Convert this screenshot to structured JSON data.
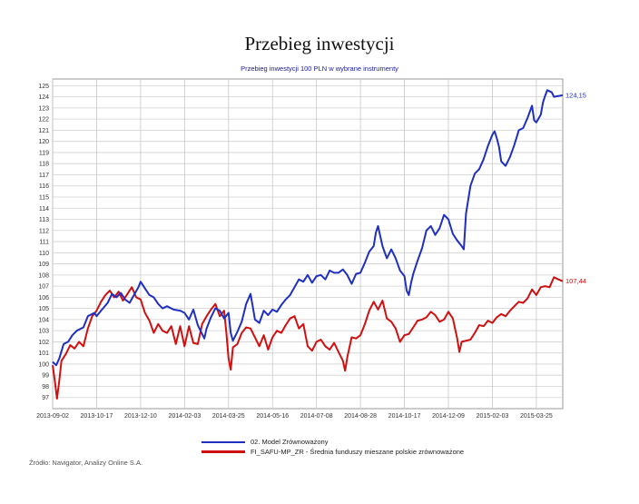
{
  "page": {
    "title": "Przebieg inwestycji",
    "source": "Źródło: Navigator, Analizy Online S.A."
  },
  "chart_data": {
    "type": "line",
    "title": "Przebieg inwestycji 100 PLN w wybrane instrumenty",
    "xlabel": "",
    "ylabel": "",
    "ylim": [
      96,
      125.6
    ],
    "yticks": [
      97,
      98,
      99,
      100,
      101,
      102,
      103,
      104,
      105,
      106,
      107,
      108,
      109,
      110,
      111,
      112,
      113,
      114,
      115,
      116,
      117,
      118,
      119,
      120,
      121,
      122,
      123,
      124,
      125
    ],
    "xticks": [
      "2013-09-02",
      "2013-10-17",
      "2013-12-10",
      "2014-02-03",
      "2014-03-25",
      "2014-05-16",
      "2014-07-08",
      "2014-08-28",
      "2014-10-17",
      "2014-12-09",
      "2015-02-03",
      "2015-03-25"
    ],
    "xlim": [
      0,
      11.6
    ],
    "grid": true,
    "legend_position": "bottom",
    "series": [
      {
        "name": "02. Model Zrównoważony",
        "color": "#1f2fc0",
        "end_label": "124,15",
        "points": [
          [
            0,
            100.2
          ],
          [
            0.08,
            99.9
          ],
          [
            0.15,
            100.5
          ],
          [
            0.25,
            101.8
          ],
          [
            0.35,
            102.0
          ],
          [
            0.45,
            102.6
          ],
          [
            0.55,
            103.0
          ],
          [
            0.7,
            103.3
          ],
          [
            0.8,
            104.3
          ],
          [
            0.95,
            104.6
          ],
          [
            1.0,
            104.3
          ],
          [
            1.1,
            104.8
          ],
          [
            1.25,
            105.5
          ],
          [
            1.35,
            106.3
          ],
          [
            1.45,
            106.0
          ],
          [
            1.55,
            106.4
          ],
          [
            1.65,
            105.8
          ],
          [
            1.75,
            105.5
          ],
          [
            1.85,
            106.2
          ],
          [
            1.95,
            106.9
          ],
          [
            2.0,
            107.4
          ],
          [
            2.1,
            106.8
          ],
          [
            2.2,
            106.2
          ],
          [
            2.3,
            106.0
          ],
          [
            2.4,
            105.4
          ],
          [
            2.5,
            105.0
          ],
          [
            2.6,
            105.2
          ],
          [
            2.75,
            104.9
          ],
          [
            2.9,
            104.8
          ],
          [
            3.0,
            104.6
          ],
          [
            3.1,
            104.0
          ],
          [
            3.2,
            104.9
          ],
          [
            3.3,
            103.5
          ],
          [
            3.45,
            102.3
          ],
          [
            3.5,
            103.2
          ],
          [
            3.6,
            104.2
          ],
          [
            3.7,
            105.0
          ],
          [
            3.8,
            104.8
          ],
          [
            3.9,
            104.1
          ],
          [
            4.0,
            104.6
          ],
          [
            4.05,
            102.8
          ],
          [
            4.1,
            102.1
          ],
          [
            4.2,
            102.9
          ],
          [
            4.3,
            103.8
          ],
          [
            4.4,
            105.4
          ],
          [
            4.5,
            106.3
          ],
          [
            4.55,
            105.2
          ],
          [
            4.6,
            104.0
          ],
          [
            4.7,
            103.7
          ],
          [
            4.8,
            104.8
          ],
          [
            4.9,
            104.4
          ],
          [
            5.0,
            104.9
          ],
          [
            5.1,
            104.7
          ],
          [
            5.2,
            105.3
          ],
          [
            5.3,
            105.8
          ],
          [
            5.4,
            106.2
          ],
          [
            5.5,
            106.9
          ],
          [
            5.6,
            107.6
          ],
          [
            5.7,
            107.4
          ],
          [
            5.8,
            108.0
          ],
          [
            5.9,
            107.3
          ],
          [
            6.0,
            107.9
          ],
          [
            6.1,
            108.0
          ],
          [
            6.2,
            107.6
          ],
          [
            6.3,
            108.4
          ],
          [
            6.4,
            108.2
          ],
          [
            6.5,
            108.2
          ],
          [
            6.6,
            108.5
          ],
          [
            6.7,
            108.0
          ],
          [
            6.8,
            107.2
          ],
          [
            6.9,
            108.1
          ],
          [
            7.0,
            108.2
          ],
          [
            7.1,
            109.1
          ],
          [
            7.2,
            110.1
          ],
          [
            7.3,
            110.6
          ],
          [
            7.35,
            111.8
          ],
          [
            7.4,
            112.4
          ],
          [
            7.45,
            111.5
          ],
          [
            7.5,
            110.6
          ],
          [
            7.6,
            109.5
          ],
          [
            7.7,
            110.3
          ],
          [
            7.8,
            109.5
          ],
          [
            7.9,
            108.4
          ],
          [
            8.0,
            107.9
          ],
          [
            8.05,
            106.6
          ],
          [
            8.1,
            106.2
          ],
          [
            8.15,
            107.3
          ],
          [
            8.2,
            108.1
          ],
          [
            8.3,
            109.3
          ],
          [
            8.4,
            110.4
          ],
          [
            8.5,
            112.0
          ],
          [
            8.6,
            112.4
          ],
          [
            8.7,
            111.6
          ],
          [
            8.8,
            112.2
          ],
          [
            8.9,
            113.4
          ],
          [
            9.0,
            113.0
          ],
          [
            9.1,
            111.7
          ],
          [
            9.2,
            111.1
          ],
          [
            9.3,
            110.6
          ],
          [
            9.35,
            110.3
          ],
          [
            9.4,
            113.5
          ],
          [
            9.5,
            116.0
          ],
          [
            9.6,
            117.1
          ],
          [
            9.7,
            117.5
          ],
          [
            9.8,
            118.4
          ],
          [
            9.9,
            119.6
          ],
          [
            10.0,
            120.6
          ],
          [
            10.05,
            120.9
          ],
          [
            10.1,
            120.3
          ],
          [
            10.15,
            119.5
          ],
          [
            10.2,
            118.2
          ],
          [
            10.3,
            117.8
          ],
          [
            10.4,
            118.6
          ],
          [
            10.5,
            119.7
          ],
          [
            10.6,
            121.0
          ],
          [
            10.7,
            121.2
          ],
          [
            10.8,
            122.1
          ],
          [
            10.9,
            123.2
          ],
          [
            10.95,
            121.9
          ],
          [
            11.0,
            121.7
          ],
          [
            11.1,
            122.4
          ],
          [
            11.15,
            123.5
          ],
          [
            11.2,
            124.1
          ],
          [
            11.25,
            124.6
          ],
          [
            11.35,
            124.4
          ],
          [
            11.4,
            124.0
          ],
          [
            11.6,
            124.15
          ]
        ]
      },
      {
        "name": "FI_SAFU-MP_ZR - Średnia funduszy mieszane polskie zrównoważone",
        "color": "#d01010",
        "end_label": "107,44",
        "points": [
          [
            0,
            99.9
          ],
          [
            0.05,
            98.5
          ],
          [
            0.1,
            96.9
          ],
          [
            0.15,
            98.5
          ],
          [
            0.2,
            100.3
          ],
          [
            0.3,
            100.9
          ],
          [
            0.4,
            101.7
          ],
          [
            0.5,
            101.4
          ],
          [
            0.6,
            102.0
          ],
          [
            0.7,
            101.6
          ],
          [
            0.8,
            103.2
          ],
          [
            0.9,
            104.3
          ],
          [
            1.0,
            104.8
          ],
          [
            1.1,
            105.6
          ],
          [
            1.2,
            106.2
          ],
          [
            1.3,
            106.6
          ],
          [
            1.4,
            106.0
          ],
          [
            1.5,
            106.5
          ],
          [
            1.6,
            105.7
          ],
          [
            1.7,
            106.3
          ],
          [
            1.8,
            106.9
          ],
          [
            1.9,
            106.0
          ],
          [
            2.0,
            105.8
          ],
          [
            2.1,
            104.6
          ],
          [
            2.2,
            103.9
          ],
          [
            2.3,
            102.8
          ],
          [
            2.4,
            103.6
          ],
          [
            2.5,
            103.0
          ],
          [
            2.6,
            102.8
          ],
          [
            2.7,
            103.4
          ],
          [
            2.8,
            101.8
          ],
          [
            2.9,
            103.4
          ],
          [
            3.0,
            101.6
          ],
          [
            3.1,
            103.4
          ],
          [
            3.2,
            101.9
          ],
          [
            3.3,
            101.8
          ],
          [
            3.4,
            103.6
          ],
          [
            3.5,
            104.3
          ],
          [
            3.6,
            104.9
          ],
          [
            3.7,
            105.4
          ],
          [
            3.8,
            104.3
          ],
          [
            3.9,
            104.8
          ],
          [
            3.95,
            102.8
          ],
          [
            4.0,
            100.5
          ],
          [
            4.05,
            99.5
          ],
          [
            4.1,
            101.5
          ],
          [
            4.2,
            101.8
          ],
          [
            4.3,
            102.8
          ],
          [
            4.4,
            103.3
          ],
          [
            4.5,
            103.2
          ],
          [
            4.6,
            102.4
          ],
          [
            4.7,
            101.6
          ],
          [
            4.8,
            102.6
          ],
          [
            4.9,
            101.3
          ],
          [
            5.0,
            102.4
          ],
          [
            5.1,
            103.0
          ],
          [
            5.2,
            102.8
          ],
          [
            5.3,
            103.5
          ],
          [
            5.4,
            104.1
          ],
          [
            5.5,
            104.3
          ],
          [
            5.6,
            103.2
          ],
          [
            5.7,
            103.6
          ],
          [
            5.8,
            101.6
          ],
          [
            5.9,
            101.2
          ],
          [
            6.0,
            102.0
          ],
          [
            6.1,
            102.2
          ],
          [
            6.2,
            101.6
          ],
          [
            6.3,
            101.3
          ],
          [
            6.4,
            101.9
          ],
          [
            6.5,
            101.1
          ],
          [
            6.6,
            100.3
          ],
          [
            6.65,
            99.4
          ],
          [
            6.7,
            100.6
          ],
          [
            6.8,
            102.4
          ],
          [
            6.9,
            102.3
          ],
          [
            7.0,
            102.6
          ],
          [
            7.1,
            103.6
          ],
          [
            7.2,
            104.8
          ],
          [
            7.3,
            105.6
          ],
          [
            7.4,
            104.9
          ],
          [
            7.5,
            105.7
          ],
          [
            7.6,
            104.1
          ],
          [
            7.7,
            103.8
          ],
          [
            7.8,
            103.2
          ],
          [
            7.9,
            102.0
          ],
          [
            8.0,
            102.6
          ],
          [
            8.1,
            102.7
          ],
          [
            8.2,
            103.3
          ],
          [
            8.3,
            103.9
          ],
          [
            8.4,
            104.0
          ],
          [
            8.5,
            104.2
          ],
          [
            8.6,
            104.7
          ],
          [
            8.7,
            104.4
          ],
          [
            8.8,
            103.8
          ],
          [
            8.9,
            104.0
          ],
          [
            9.0,
            104.7
          ],
          [
            9.1,
            104.1
          ],
          [
            9.2,
            102.3
          ],
          [
            9.25,
            101.1
          ],
          [
            9.3,
            102.0
          ],
          [
            9.4,
            102.1
          ],
          [
            9.5,
            102.2
          ],
          [
            9.6,
            102.8
          ],
          [
            9.7,
            103.5
          ],
          [
            9.8,
            103.4
          ],
          [
            9.9,
            103.9
          ],
          [
            10.0,
            103.7
          ],
          [
            10.1,
            104.2
          ],
          [
            10.2,
            104.5
          ],
          [
            10.3,
            104.3
          ],
          [
            10.4,
            104.8
          ],
          [
            10.5,
            105.2
          ],
          [
            10.6,
            105.6
          ],
          [
            10.7,
            105.5
          ],
          [
            10.8,
            105.9
          ],
          [
            10.9,
            106.7
          ],
          [
            11.0,
            106.2
          ],
          [
            11.1,
            106.9
          ],
          [
            11.2,
            107.0
          ],
          [
            11.3,
            106.9
          ],
          [
            11.4,
            107.8
          ],
          [
            11.5,
            107.6
          ],
          [
            11.6,
            107.44
          ]
        ]
      }
    ]
  }
}
